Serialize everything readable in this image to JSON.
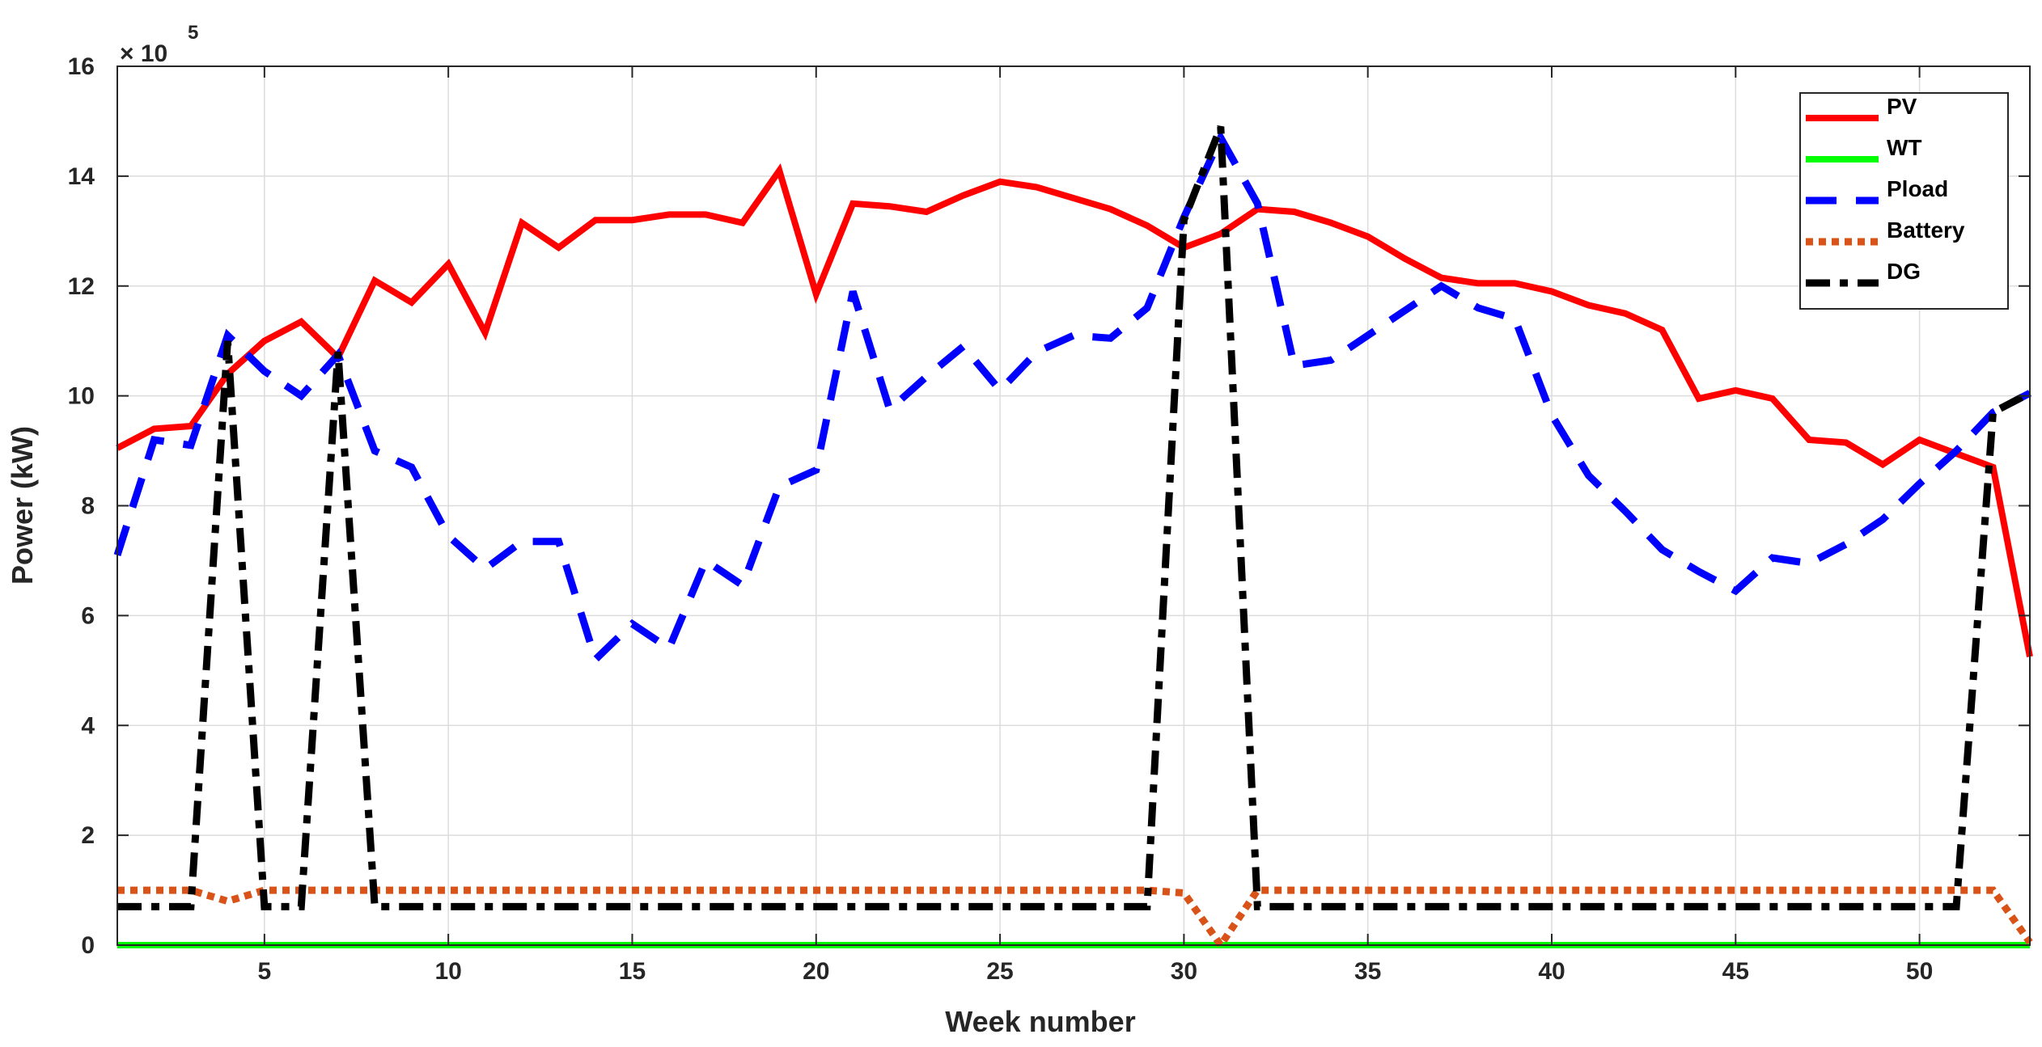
{
  "chart_data": {
    "type": "line",
    "xlabel": "Week number",
    "ylabel": "Power (kW)",
    "y_exponent": {
      "prefix": "× 10",
      "power": "5"
    },
    "xlim": [
      1,
      53
    ],
    "ylim": [
      0,
      16
    ],
    "x_ticks": [
      5,
      10,
      15,
      20,
      25,
      30,
      35,
      40,
      45,
      50
    ],
    "y_ticks": [
      0,
      2,
      4,
      6,
      8,
      10,
      12,
      14,
      16
    ],
    "grid": true,
    "legend_position": "top-right",
    "x": [
      1,
      2,
      3,
      4,
      5,
      6,
      7,
      8,
      9,
      10,
      11,
      12,
      13,
      14,
      15,
      16,
      17,
      18,
      19,
      20,
      21,
      22,
      23,
      24,
      25,
      26,
      27,
      28,
      29,
      30,
      31,
      32,
      33,
      34,
      35,
      36,
      37,
      38,
      39,
      40,
      41,
      42,
      43,
      44,
      45,
      46,
      47,
      48,
      49,
      50,
      51,
      52,
      53
    ],
    "series": [
      {
        "name": "PV",
        "color": "#ff0000",
        "style": "solid",
        "values": [
          9.05,
          9.4,
          9.45,
          10.4,
          11.0,
          11.35,
          10.7,
          12.1,
          11.7,
          12.4,
          11.15,
          13.15,
          12.7,
          13.2,
          13.2,
          13.3,
          13.3,
          13.15,
          14.1,
          11.85,
          13.5,
          13.45,
          13.35,
          13.65,
          13.9,
          13.8,
          13.6,
          13.4,
          13.1,
          12.7,
          12.95,
          13.4,
          13.35,
          13.15,
          12.9,
          12.5,
          12.15,
          12.05,
          12.05,
          11.9,
          11.65,
          11.5,
          11.2,
          9.95,
          10.1,
          9.95,
          9.2,
          9.15,
          8.75,
          9.2,
          8.95,
          8.7,
          5.25
        ]
      },
      {
        "name": "WT",
        "color": "#00ff00",
        "style": "solid",
        "values": [
          0,
          0,
          0,
          0,
          0,
          0,
          0,
          0,
          0,
          0,
          0,
          0,
          0,
          0,
          0,
          0,
          0,
          0,
          0,
          0,
          0,
          0,
          0,
          0,
          0,
          0,
          0,
          0,
          0,
          0,
          0,
          0,
          0,
          0,
          0,
          0,
          0,
          0,
          0,
          0,
          0,
          0,
          0,
          0,
          0,
          0,
          0,
          0,
          0,
          0,
          0,
          0,
          0
        ]
      },
      {
        "name": "Pload",
        "color": "#0000ff",
        "style": "dashed",
        "values": [
          7.1,
          9.2,
          9.1,
          11.1,
          10.45,
          10.0,
          10.75,
          9.0,
          8.7,
          7.45,
          6.85,
          7.35,
          7.35,
          5.2,
          5.85,
          5.4,
          7.0,
          6.55,
          8.35,
          8.65,
          11.9,
          9.75,
          10.35,
          10.9,
          10.1,
          10.8,
          11.1,
          11.05,
          11.6,
          13.25,
          14.7,
          13.5,
          10.55,
          10.65,
          11.1,
          11.55,
          12.0,
          11.6,
          11.4,
          9.65,
          8.55,
          7.9,
          7.2,
          6.8,
          6.45,
          7.05,
          6.95,
          7.3,
          7.75,
          8.4,
          9.0,
          9.7,
          10.05
        ]
      },
      {
        "name": "Battery",
        "color": "#d95319",
        "style": "dotted",
        "values": [
          1.0,
          1.0,
          1.0,
          0.8,
          1.0,
          1.0,
          1.0,
          1.0,
          1.0,
          1.0,
          1.0,
          1.0,
          1.0,
          1.0,
          1.0,
          1.0,
          1.0,
          1.0,
          1.0,
          1.0,
          1.0,
          1.0,
          1.0,
          1.0,
          1.0,
          1.0,
          1.0,
          1.0,
          1.0,
          0.95,
          0.0,
          1.0,
          1.0,
          1.0,
          1.0,
          1.0,
          1.0,
          1.0,
          1.0,
          1.0,
          1.0,
          1.0,
          1.0,
          1.0,
          1.0,
          1.0,
          1.0,
          1.0,
          1.0,
          1.0,
          1.0,
          1.0,
          0.05
        ]
      },
      {
        "name": "DG",
        "color": "#000000",
        "style": "dashdot",
        "values": [
          0.7,
          0.7,
          0.7,
          11.0,
          0.7,
          0.7,
          10.8,
          0.7,
          0.7,
          0.7,
          0.7,
          0.7,
          0.7,
          0.7,
          0.7,
          0.7,
          0.7,
          0.7,
          0.7,
          0.7,
          0.7,
          0.7,
          0.7,
          0.7,
          0.7,
          0.7,
          0.7,
          0.7,
          0.7,
          13.2,
          14.9,
          0.7,
          0.7,
          0.7,
          0.7,
          0.7,
          0.7,
          0.7,
          0.7,
          0.7,
          0.7,
          0.7,
          0.7,
          0.7,
          0.7,
          0.7,
          0.7,
          0.7,
          0.7,
          0.7,
          0.7,
          9.7,
          10.05
        ]
      }
    ]
  }
}
